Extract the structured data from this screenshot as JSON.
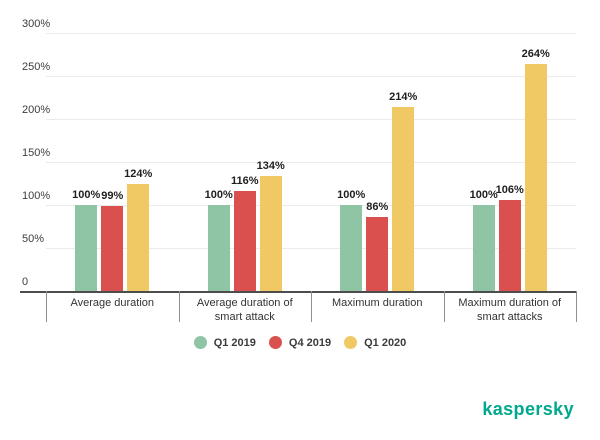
{
  "chart_data": {
    "type": "bar",
    "title": "",
    "categories": [
      "Average duration",
      "Average duration of smart attack",
      "Maximum duration",
      "Maximum duration of smart attacks"
    ],
    "series": [
      {
        "name": "Q1 2019",
        "color": "#8FC4A5",
        "values": [
          100,
          100,
          100,
          100
        ]
      },
      {
        "name": "Q4 2019",
        "color": "#D9504F",
        "values": [
          99,
          116,
          86,
          106
        ]
      },
      {
        "name": "Q1 2020",
        "color": "#F0C964",
        "values": [
          124,
          134,
          214,
          264
        ]
      }
    ],
    "value_label_format": "{v}%",
    "y_ticks": [
      {
        "label": "300%",
        "value": 300
      },
      {
        "label": "250%",
        "value": 250
      },
      {
        "label": "200%",
        "value": 200
      },
      {
        "label": "150%",
        "value": 150
      },
      {
        "label": "100%",
        "value": 100
      },
      {
        "label": "50%",
        "value": 50
      },
      {
        "label": "0",
        "value": 0
      }
    ],
    "ylim": [
      0,
      300
    ],
    "grid": true,
    "legend_position": "bottom",
    "gridline_color": "#ebebeb",
    "axis_color": "#4d4d4d"
  },
  "logo": {
    "text": "kaspersky",
    "color": "#00A88E"
  }
}
